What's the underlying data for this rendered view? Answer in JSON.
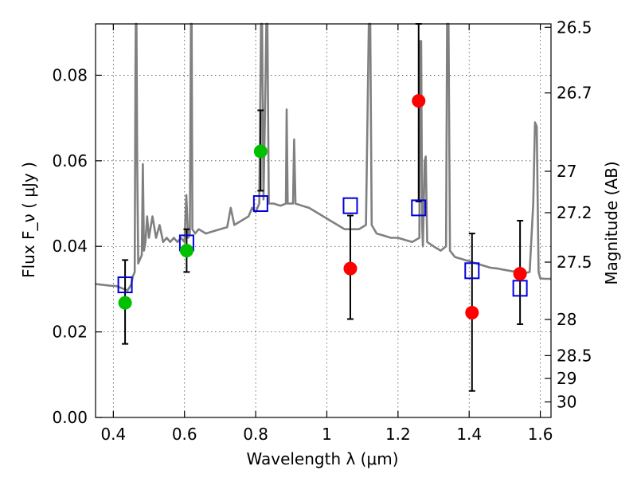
{
  "chart_data": {
    "type": "scatter",
    "title": "",
    "xlabel": "Wavelength  λ (μm)",
    "ylabel": "Flux  F_ν  ( μJy )",
    "ylabel_right": "Magnitude (AB)",
    "xlim": [
      0.35,
      1.63
    ],
    "ylim": [
      0.0,
      0.092
    ],
    "grid": true,
    "x_ticks": [
      0.4,
      0.6,
      0.8,
      1.0,
      1.2,
      1.4,
      1.6
    ],
    "x_tick_labels": [
      "0.4",
      "0.6",
      "0.8",
      "1",
      "1.2",
      "1.4",
      "1.6"
    ],
    "y_ticks": [
      0.0,
      0.02,
      0.04,
      0.06,
      0.08
    ],
    "y_tick_labels": [
      "0.00",
      "0.02",
      "0.04",
      "0.06",
      "0.08"
    ],
    "right_ticks": [
      {
        "label": "26.5",
        "mag": 26.5
      },
      {
        "label": "26.7",
        "mag": 26.7
      },
      {
        "label": "27",
        "mag": 27.0
      },
      {
        "label": "27.2",
        "mag": 27.2
      },
      {
        "label": "27.5",
        "mag": 27.5
      },
      {
        "label": "28",
        "mag": 28.0
      },
      {
        "label": "28.5",
        "mag": 28.5
      },
      {
        "label": "29",
        "mag": 29.0
      },
      {
        "label": "30",
        "mag": 30.0
      }
    ],
    "model_spectrum": {
      "color": "#808080",
      "points": [
        [
          0.35,
          0.0312
        ],
        [
          0.37,
          0.031
        ],
        [
          0.39,
          0.0308
        ],
        [
          0.41,
          0.0307
        ],
        [
          0.43,
          0.03
        ],
        [
          0.44,
          0.0297
        ],
        [
          0.45,
          0.031
        ],
        [
          0.455,
          0.033
        ],
        [
          0.46,
          0.034
        ],
        [
          0.462,
          0.08
        ],
        [
          0.463,
          0.092
        ],
        [
          0.465,
          0.092
        ],
        [
          0.467,
          0.06
        ],
        [
          0.47,
          0.036
        ],
        [
          0.48,
          0.038
        ],
        [
          0.483,
          0.0592
        ],
        [
          0.486,
          0.039
        ],
        [
          0.49,
          0.041
        ],
        [
          0.495,
          0.047
        ],
        [
          0.5,
          0.042
        ],
        [
          0.51,
          0.047
        ],
        [
          0.52,
          0.042
        ],
        [
          0.53,
          0.045
        ],
        [
          0.54,
          0.041
        ],
        [
          0.55,
          0.042
        ],
        [
          0.56,
          0.041
        ],
        [
          0.57,
          0.042
        ],
        [
          0.58,
          0.041
        ],
        [
          0.59,
          0.042
        ],
        [
          0.6,
          0.041
        ],
        [
          0.605,
          0.052
        ],
        [
          0.61,
          0.042
        ],
        [
          0.615,
          0.043
        ],
        [
          0.618,
          0.092
        ],
        [
          0.62,
          0.092
        ],
        [
          0.622,
          0.044
        ],
        [
          0.63,
          0.043
        ],
        [
          0.64,
          0.044
        ],
        [
          0.66,
          0.043
        ],
        [
          0.68,
          0.0435
        ],
        [
          0.7,
          0.044
        ],
        [
          0.72,
          0.0445
        ],
        [
          0.73,
          0.049
        ],
        [
          0.74,
          0.045
        ],
        [
          0.76,
          0.046
        ],
        [
          0.78,
          0.047
        ],
        [
          0.79,
          0.049
        ],
        [
          0.8,
          0.048
        ],
        [
          0.81,
          0.05
        ],
        [
          0.815,
          0.092
        ],
        [
          0.818,
          0.092
        ],
        [
          0.822,
          0.051
        ],
        [
          0.828,
          0.08
        ],
        [
          0.83,
          0.092
        ],
        [
          0.833,
          0.092
        ],
        [
          0.837,
          0.05
        ],
        [
          0.85,
          0.05
        ],
        [
          0.87,
          0.0495
        ],
        [
          0.885,
          0.05
        ],
        [
          0.887,
          0.072
        ],
        [
          0.89,
          0.05
        ],
        [
          0.905,
          0.05
        ],
        [
          0.908,
          0.065
        ],
        [
          0.912,
          0.05
        ],
        [
          0.93,
          0.0495
        ],
        [
          0.95,
          0.049
        ],
        [
          0.97,
          0.048
        ],
        [
          0.99,
          0.047
        ],
        [
          1.01,
          0.046
        ],
        [
          1.03,
          0.045
        ],
        [
          1.05,
          0.044
        ],
        [
          1.07,
          0.044
        ],
        [
          1.09,
          0.044
        ],
        [
          1.11,
          0.045
        ],
        [
          1.118,
          0.092
        ],
        [
          1.122,
          0.092
        ],
        [
          1.126,
          0.045
        ],
        [
          1.14,
          0.043
        ],
        [
          1.16,
          0.0425
        ],
        [
          1.18,
          0.042
        ],
        [
          1.2,
          0.042
        ],
        [
          1.22,
          0.0415
        ],
        [
          1.24,
          0.041
        ],
        [
          1.26,
          0.042
        ],
        [
          1.262,
          0.088
        ],
        [
          1.265,
          0.088
        ],
        [
          1.268,
          0.045
        ],
        [
          1.27,
          0.04
        ],
        [
          1.275,
          0.06
        ],
        [
          1.278,
          0.061
        ],
        [
          1.282,
          0.041
        ],
        [
          1.3,
          0.04
        ],
        [
          1.32,
          0.039
        ],
        [
          1.335,
          0.04
        ],
        [
          1.338,
          0.092
        ],
        [
          1.342,
          0.092
        ],
        [
          1.346,
          0.039
        ],
        [
          1.36,
          0.0375
        ],
        [
          1.38,
          0.037
        ],
        [
          1.4,
          0.0365
        ],
        [
          1.42,
          0.036
        ],
        [
          1.44,
          0.0355
        ],
        [
          1.46,
          0.035
        ],
        [
          1.48,
          0.0348
        ],
        [
          1.5,
          0.0345
        ],
        [
          1.52,
          0.0342
        ],
        [
          1.54,
          0.034
        ],
        [
          1.56,
          0.0338
        ],
        [
          1.57,
          0.034
        ],
        [
          1.58,
          0.05
        ],
        [
          1.585,
          0.069
        ],
        [
          1.59,
          0.068
        ],
        [
          1.595,
          0.034
        ],
        [
          1.6,
          0.0325
        ],
        [
          1.615,
          0.0324
        ],
        [
          1.63,
          0.0324
        ]
      ]
    },
    "series": [
      {
        "marker": "circle",
        "color": "#00c000",
        "points": [
          {
            "x": 0.433,
            "y": 0.0268,
            "yerr_low": 0.0172,
            "yerr_high": 0.0368
          },
          {
            "x": 0.606,
            "y": 0.039,
            "yerr_low": 0.034,
            "yerr_high": 0.044
          },
          {
            "x": 0.814,
            "y": 0.0622,
            "yerr_low": 0.053,
            "yerr_high": 0.0718
          }
        ]
      },
      {
        "marker": "circle",
        "color": "#ff0000",
        "points": [
          {
            "x": 1.066,
            "y": 0.0348,
            "yerr_low": 0.023,
            "yerr_high": 0.0472
          },
          {
            "x": 1.258,
            "y": 0.074,
            "yerr_low": 0.0505,
            "yerr_high": 0.092
          },
          {
            "x": 1.408,
            "y": 0.0245,
            "yerr_low": 0.0062,
            "yerr_high": 0.043
          },
          {
            "x": 1.543,
            "y": 0.0336,
            "yerr_low": 0.0218,
            "yerr_high": 0.046
          }
        ]
      },
      {
        "marker": "square-open",
        "color": "#0000dd",
        "points": [
          {
            "x": 0.433,
            "y": 0.031
          },
          {
            "x": 0.606,
            "y": 0.0408
          },
          {
            "x": 0.814,
            "y": 0.05
          },
          {
            "x": 1.066,
            "y": 0.0495
          },
          {
            "x": 1.258,
            "y": 0.049
          },
          {
            "x": 1.408,
            "y": 0.0343
          },
          {
            "x": 1.543,
            "y": 0.0302
          }
        ]
      }
    ]
  }
}
